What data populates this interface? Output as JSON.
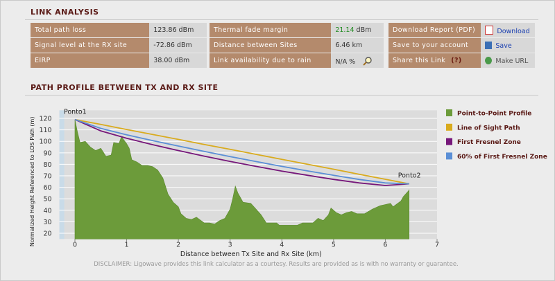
{
  "header": {
    "title": "LINK ANALYSIS"
  },
  "link_analysis": [
    [
      {
        "label": "Total path loss",
        "value": "123.86 dBm"
      },
      {
        "label": "Signal level at the RX site",
        "value": "-72.86 dBm"
      },
      {
        "label": "EIRP",
        "value": "38.00 dBm"
      }
    ],
    [
      {
        "label": "Thermal fade margin",
        "value": "21.14",
        "unit": "dBm"
      },
      {
        "label": "Distance between Sites",
        "value": "6.46 km"
      },
      {
        "label": "Link availability due to rain",
        "value": "N/A %"
      }
    ],
    [
      {
        "label": "Download Report (PDF)",
        "action": "Download"
      },
      {
        "label": "Save to your account",
        "action": "Save"
      },
      {
        "label": "Share this Link",
        "help": "(?)",
        "action": "Make URL"
      }
    ]
  ],
  "section_title": "PATH PROFILE BETWEEN TX AND RX SITE",
  "chart_data": {
    "type": "area-line",
    "xlabel": "Distance between Tx Site and Rx Site (km)",
    "ylabel": "Normalized Height Referenced to LOS Path (m)",
    "point_labels": [
      "Ponto1",
      "Ponto2"
    ],
    "xlim": [
      -0.3,
      7
    ],
    "ylim": [
      15,
      127
    ],
    "xticks": [
      0,
      1,
      2,
      3,
      4,
      5,
      6,
      7
    ],
    "yticks": [
      20,
      30,
      40,
      50,
      60,
      70,
      80,
      90,
      100,
      110,
      120
    ],
    "grid": true,
    "legend": "right",
    "series": [
      {
        "name": "Point-to-Point Profile",
        "color": "#6c9b3a",
        "kind": "area",
        "x": [
          0,
          0.05,
          0.1,
          0.2,
          0.3,
          0.4,
          0.5,
          0.6,
          0.7,
          0.75,
          0.85,
          0.9,
          1.0,
          1.05,
          1.1,
          1.2,
          1.3,
          1.4,
          1.5,
          1.6,
          1.7,
          1.8,
          1.9,
          2.0,
          2.05,
          2.15,
          2.25,
          2.35,
          2.5,
          2.6,
          2.7,
          2.8,
          2.9,
          3.0,
          3.05,
          3.1,
          3.15,
          3.25,
          3.4,
          3.5,
          3.6,
          3.7,
          3.9,
          3.95,
          4.3,
          4.4,
          4.6,
          4.7,
          4.8,
          4.9,
          4.95,
          5.05,
          5.15,
          5.25,
          5.35,
          5.45,
          5.6,
          5.75,
          5.9,
          6.0,
          6.1,
          6.15,
          6.3,
          6.35,
          6.45,
          6.46
        ],
        "values": [
          119,
          108,
          99,
          100,
          95,
          92,
          94,
          87,
          88,
          99,
          98,
          104,
          98,
          94,
          84,
          82,
          79,
          79,
          78,
          75,
          68,
          54,
          47,
          43,
          37,
          33,
          32,
          34,
          29,
          29,
          28,
          31,
          33,
          41,
          50,
          61,
          55,
          47,
          46,
          41,
          36,
          29,
          29,
          27,
          27,
          29,
          29,
          33,
          31,
          36,
          42,
          38,
          36,
          38,
          39,
          37,
          37,
          41,
          44,
          45,
          46,
          43,
          48,
          52,
          57,
          58
        ]
      },
      {
        "name": "Line of Sight Path",
        "color": "#d9ab1e",
        "kind": "line",
        "x": [
          0,
          0.5,
          1,
          1.5,
          2,
          2.5,
          3,
          3.5,
          4,
          4.5,
          5,
          5.5,
          6,
          6.46
        ],
        "values": [
          119,
          114.7,
          110.3,
          106.0,
          101.7,
          97.3,
          93.0,
          88.7,
          84.3,
          80.0,
          75.7,
          71.3,
          67.0,
          63
        ]
      },
      {
        "name": "First Fresnel Zone",
        "color": "#76177a",
        "kind": "line",
        "x": [
          0,
          0.5,
          1,
          1.5,
          2,
          2.5,
          3,
          3.5,
          4,
          4.5,
          5,
          5.5,
          6,
          6.46
        ],
        "values": [
          119,
          109.1,
          102.7,
          97.1,
          92.0,
          87.1,
          82.5,
          78.2,
          74.1,
          70.4,
          66.9,
          63.8,
          61.6,
          63
        ]
      },
      {
        "name": "60% of First Fresnel Zone",
        "color": "#5b8fd6",
        "kind": "line",
        "x": [
          0,
          0.5,
          1,
          1.5,
          2,
          2.5,
          3,
          3.5,
          4,
          4.5,
          5,
          5.5,
          6,
          6.46
        ],
        "values": [
          119,
          111.3,
          105.7,
          100.7,
          95.9,
          91.2,
          86.7,
          82.4,
          78.2,
          74.2,
          70.4,
          66.8,
          63.8,
          63
        ]
      }
    ]
  },
  "disclaimer": "DISCLAIMER: Ligowave provides this link calculator as a courtesy.  Results are provided as is with no warranty or guarantee."
}
